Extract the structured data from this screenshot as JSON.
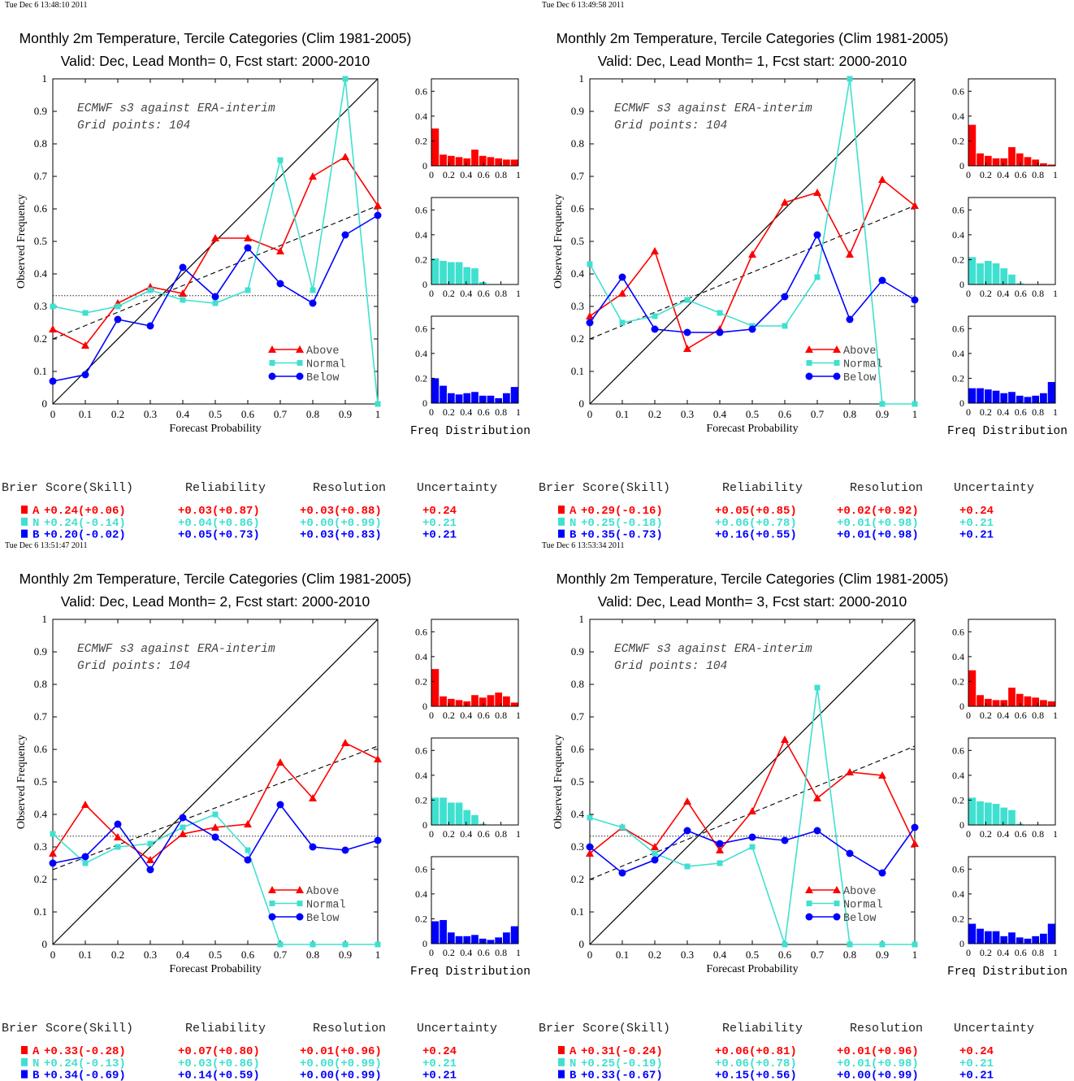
{
  "colors": {
    "above": "#ff0000",
    "normal": "#40e0d0",
    "below": "#0000ff",
    "axis": "#000000"
  },
  "common": {
    "title": "Monthly 2m Temperature, Tercile Categories (Clim 1981-2005)",
    "annotation_line1": "ECMWF s3 against ERA-interim",
    "annotation_line2": "Grid points:  104",
    "xlabel": "Forecast Probability",
    "ylabel": "Observed Frequency",
    "freq_label": "Freq Distribution",
    "legend": [
      "Above",
      "Normal",
      "Below"
    ],
    "score_headers": [
      "Brier Score(Skill)",
      "Reliability",
      "Resolution",
      "Uncertainty"
    ],
    "category_letters": [
      "A",
      "N",
      "B"
    ],
    "x_ticks": [
      "0",
      "0.1",
      "0.2",
      "0.3",
      "0.4",
      "0.5",
      "0.6",
      "0.7",
      "0.8",
      "0.9",
      "1"
    ],
    "y_ticks": [
      "0",
      "0.1",
      "0.2",
      "0.3",
      "0.4",
      "0.5",
      "0.6",
      "0.7",
      "0.8",
      "0.9",
      "1"
    ],
    "hist_x_ticks": [
      "0",
      "0.2",
      "0.4",
      "0.6",
      "0.8",
      "1"
    ],
    "hist_y_ticks": [
      "0",
      "0.2",
      "0.4",
      "0.6"
    ]
  },
  "chart_data": [
    {
      "type": "line",
      "timestamp": "Tue Dec  6 13:48:10 2011",
      "subtitle": "Valid: Dec, Lead Month= 0, Fcst start: 2000-2010",
      "xlim": [
        0,
        1
      ],
      "ylim": [
        0,
        1
      ],
      "x": [
        0,
        0.1,
        0.2,
        0.3,
        0.4,
        0.5,
        0.6,
        0.7,
        0.8,
        0.9,
        1
      ],
      "series": [
        {
          "name": "Above",
          "values": [
            0.23,
            0.18,
            0.31,
            0.36,
            0.34,
            0.51,
            0.51,
            0.47,
            0.7,
            0.76,
            0.61
          ]
        },
        {
          "name": "Normal",
          "values": [
            0.3,
            0.28,
            0.3,
            0.35,
            0.32,
            0.31,
            0.35,
            0.75,
            0.35,
            1.0,
            0.0
          ]
        },
        {
          "name": "Below",
          "values": [
            0.07,
            0.09,
            0.26,
            0.24,
            0.42,
            0.33,
            0.48,
            0.37,
            0.31,
            0.52,
            0.58
          ]
        }
      ],
      "regression_line": [
        0.2,
        0.61
      ],
      "climatology": 0.333,
      "histograms": {
        "Above": [
          0.3,
          0.09,
          0.08,
          0.07,
          0.06,
          0.13,
          0.08,
          0.07,
          0.06,
          0.05,
          0.05
        ],
        "Normal": [
          0.21,
          0.19,
          0.18,
          0.18,
          0.14,
          0.13,
          0.02,
          0,
          0,
          0,
          0
        ],
        "Below": [
          0.2,
          0.14,
          0.08,
          0.07,
          0.08,
          0.09,
          0.06,
          0.06,
          0.04,
          0.08,
          0.13
        ]
      },
      "scores": [
        [
          "+0.24(+0.06)",
          "+0.03(+0.87)",
          "+0.03(+0.88)",
          "+0.24"
        ],
        [
          "+0.24(-0.14)",
          "+0.04(+0.86)",
          "+0.00(+0.99)",
          "+0.21"
        ],
        [
          "+0.20(-0.02)",
          "+0.05(+0.73)",
          "+0.03(+0.83)",
          "+0.21"
        ]
      ]
    },
    {
      "type": "line",
      "timestamp": "Tue Dec  6 13:49:58 2011",
      "subtitle": "Valid: Dec, Lead Month= 1, Fcst start: 2000-2010",
      "xlim": [
        0,
        1
      ],
      "ylim": [
        0,
        1
      ],
      "x": [
        0,
        0.1,
        0.2,
        0.3,
        0.4,
        0.5,
        0.6,
        0.7,
        0.8,
        0.9,
        1
      ],
      "series": [
        {
          "name": "Above",
          "values": [
            0.27,
            0.34,
            0.47,
            0.17,
            0.23,
            0.46,
            0.62,
            0.65,
            0.46,
            0.69,
            0.61
          ]
        },
        {
          "name": "Normal",
          "values": [
            0.43,
            0.25,
            0.27,
            0.32,
            0.28,
            0.24,
            0.24,
            0.39,
            1.0,
            0.0,
            0.0
          ]
        },
        {
          "name": "Below",
          "values": [
            0.25,
            0.39,
            0.23,
            0.22,
            0.22,
            0.23,
            0.33,
            0.52,
            0.26,
            0.38,
            0.32
          ]
        }
      ],
      "regression_line": [
        0.2,
        0.61
      ],
      "climatology": 0.333,
      "histograms": {
        "Above": [
          0.33,
          0.1,
          0.08,
          0.06,
          0.06,
          0.15,
          0.1,
          0.07,
          0.05,
          0.02,
          0.01
        ],
        "Normal": [
          0.22,
          0.17,
          0.19,
          0.17,
          0.13,
          0.08,
          0.01,
          0,
          0,
          0,
          0
        ],
        "Below": [
          0.12,
          0.12,
          0.11,
          0.1,
          0.08,
          0.09,
          0.06,
          0.05,
          0.06,
          0.08,
          0.17
        ]
      },
      "scores": [
        [
          "+0.29(-0.16)",
          "+0.05(+0.85)",
          "+0.02(+0.92)",
          "+0.24"
        ],
        [
          "+0.25(-0.18)",
          "+0.06(+0.78)",
          "+0.01(+0.98)",
          "+0.21"
        ],
        [
          "+0.35(-0.73)",
          "+0.16(+0.55)",
          "+0.01(+0.98)",
          "+0.21"
        ]
      ]
    },
    {
      "type": "line",
      "timestamp": "Tue Dec  6 13:51:47 2011",
      "subtitle": "Valid: Dec, Lead Month= 2, Fcst start: 2000-2010",
      "xlim": [
        0,
        1
      ],
      "ylim": [
        0,
        1
      ],
      "x": [
        0,
        0.1,
        0.2,
        0.3,
        0.4,
        0.5,
        0.6,
        0.7,
        0.8,
        0.9,
        1
      ],
      "series": [
        {
          "name": "Above",
          "values": [
            0.28,
            0.43,
            0.33,
            0.26,
            0.34,
            0.36,
            0.37,
            0.56,
            0.45,
            0.62,
            0.57
          ]
        },
        {
          "name": "Normal",
          "values": [
            0.34,
            0.25,
            0.3,
            0.31,
            0.36,
            0.4,
            0.29,
            0.0,
            0.0,
            0.0,
            0.0
          ]
        },
        {
          "name": "Below",
          "values": [
            0.25,
            0.27,
            0.37,
            0.23,
            0.39,
            0.33,
            0.26,
            0.43,
            0.3,
            0.29,
            0.32
          ]
        }
      ],
      "regression_line": [
        0.23,
        0.61
      ],
      "climatology": 0.333,
      "histograms": {
        "Above": [
          0.3,
          0.08,
          0.06,
          0.05,
          0.04,
          0.09,
          0.07,
          0.09,
          0.11,
          0.08,
          0.03
        ],
        "Normal": [
          0.22,
          0.22,
          0.18,
          0.18,
          0.12,
          0.08,
          0.01,
          0,
          0,
          0,
          0
        ],
        "Below": [
          0.18,
          0.19,
          0.09,
          0.06,
          0.06,
          0.07,
          0.04,
          0.03,
          0.05,
          0.09,
          0.14
        ]
      },
      "scores": [
        [
          "+0.33(-0.28)",
          "+0.07(+0.80)",
          "+0.01(+0.96)",
          "+0.24"
        ],
        [
          "+0.24(-0.13)",
          "+0.03(+0.86)",
          "+0.00(+0.99)",
          "+0.21"
        ],
        [
          "+0.34(-0.69)",
          "+0.14(+0.59)",
          "+0.00(+0.99)",
          "+0.21"
        ]
      ]
    },
    {
      "type": "line",
      "timestamp": "Tue Dec  6 13:53:34 2011",
      "subtitle": "Valid: Dec, Lead Month= 3, Fcst start: 2000-2010",
      "xlim": [
        0,
        1
      ],
      "ylim": [
        0,
        1
      ],
      "x": [
        0,
        0.1,
        0.2,
        0.3,
        0.4,
        0.5,
        0.6,
        0.7,
        0.8,
        0.9,
        1
      ],
      "series": [
        {
          "name": "Above",
          "values": [
            0.28,
            0.36,
            0.3,
            0.44,
            0.29,
            0.41,
            0.63,
            0.45,
            0.53,
            0.52,
            0.31
          ]
        },
        {
          "name": "Normal",
          "values": [
            0.39,
            0.36,
            0.28,
            0.24,
            0.25,
            0.3,
            0.0,
            0.79,
            0.0,
            0.0,
            0.0
          ]
        },
        {
          "name": "Below",
          "values": [
            0.3,
            0.22,
            0.26,
            0.35,
            0.31,
            0.33,
            0.32,
            0.35,
            0.28,
            0.22,
            0.36
          ]
        }
      ],
      "regression_line": [
        0.2,
        0.61
      ],
      "climatology": 0.333,
      "histograms": {
        "Above": [
          0.29,
          0.09,
          0.06,
          0.05,
          0.05,
          0.15,
          0.1,
          0.08,
          0.07,
          0.05,
          0.04
        ],
        "Normal": [
          0.22,
          0.19,
          0.18,
          0.17,
          0.14,
          0.12,
          0.01,
          0,
          0,
          0,
          0
        ],
        "Below": [
          0.16,
          0.12,
          0.1,
          0.1,
          0.06,
          0.09,
          0.05,
          0.04,
          0.06,
          0.08,
          0.16
        ]
      },
      "scores": [
        [
          "+0.31(-0.24)",
          "+0.06(+0.81)",
          "+0.01(+0.96)",
          "+0.24"
        ],
        [
          "+0.25(-0.19)",
          "+0.06(+0.78)",
          "+0.01(+0.98)",
          "+0.21"
        ],
        [
          "+0.33(-0.67)",
          "+0.15(+0.56)",
          "+0.00(+0.99)",
          "+0.21"
        ]
      ]
    }
  ]
}
